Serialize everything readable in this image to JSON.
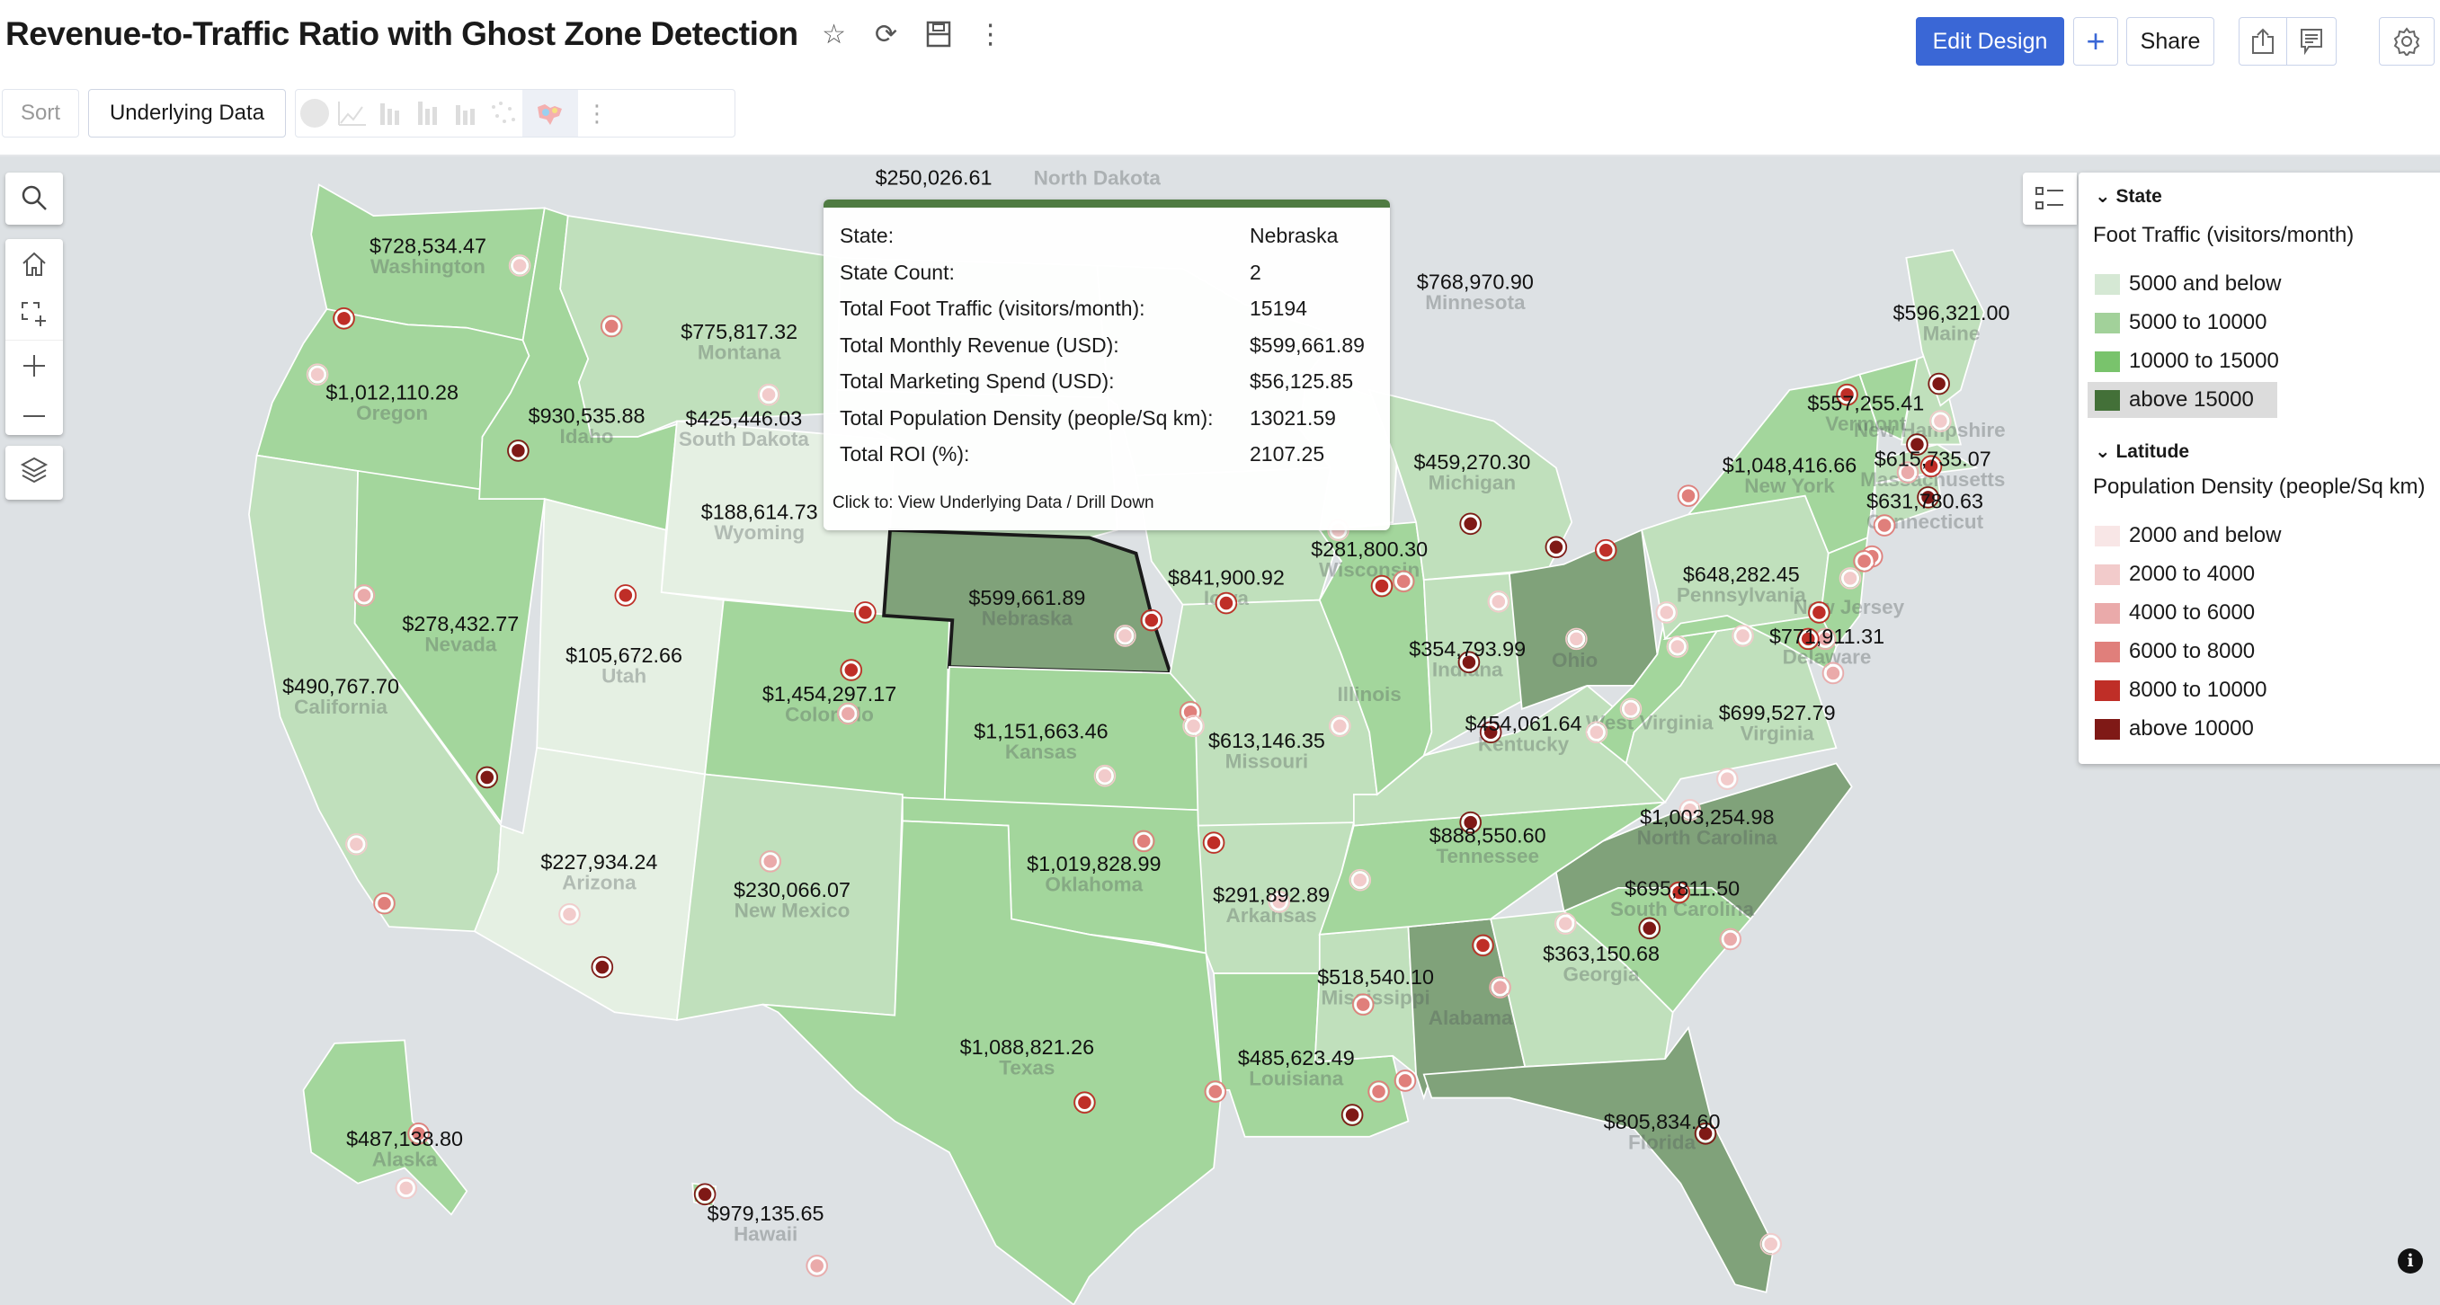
{
  "header": {
    "title": "Revenue-to-Traffic Ratio with Ghost Zone Detection",
    "edit_design": "Edit Design",
    "add": "+",
    "share": "Share"
  },
  "toolbar": {
    "sort": "Sort",
    "underlying_data": "Underlying Data"
  },
  "tooltip": {
    "rows": [
      {
        "label": "State:",
        "value": "Nebraska"
      },
      {
        "label": "State Count:",
        "value": "2"
      },
      {
        "label": "Total Foot Traffic (visitors/month):",
        "value": "15194"
      },
      {
        "label": "Total Monthly Revenue (USD):",
        "value": "$599,661.89"
      },
      {
        "label": "Total Marketing Spend (USD):",
        "value": "$56,125.85"
      },
      {
        "label": "Total Population Density (people/Sq km):",
        "value": "13021.59"
      },
      {
        "label": "Total ROI (%):",
        "value": "2107.25"
      }
    ],
    "footer": "Click to: View Underlying Data / Drill Down"
  },
  "legend": {
    "state_section": "State",
    "state_title": "Foot Traffic (visitors/month)",
    "state_items": [
      {
        "label": "5000 and below",
        "color": "#d5e8d4"
      },
      {
        "label": "5000 to 10000",
        "color": "#a2d19a"
      },
      {
        "label": "10000 to 15000",
        "color": "#79c36c"
      },
      {
        "label": "above 15000",
        "color": "#437038"
      }
    ],
    "lat_section": "Latitude",
    "lat_title": "Population Density (people/Sq km)",
    "lat_items": [
      {
        "label": "2000 and below",
        "color": "#f8e6e6"
      },
      {
        "label": "2000 to 4000",
        "color": "#f2cbcb"
      },
      {
        "label": "4000 to 6000",
        "color": "#eaaaaa"
      },
      {
        "label": "6000 to 8000",
        "color": "#e07f7b"
      },
      {
        "label": "8000 to 10000",
        "color": "#bf2e27"
      },
      {
        "label": "above 10000",
        "color": "#7f1916"
      }
    ]
  },
  "map_fill_colors": [
    "#e5f0e3",
    "#c0e0bc",
    "#a3d69c",
    "#80a27a"
  ],
  "states": [
    {
      "name": "Washington",
      "revenue": "$728,534.47",
      "traffic_band": 2
    },
    {
      "name": "Oregon",
      "revenue": "$1,012,110.28",
      "traffic_band": 2
    },
    {
      "name": "California",
      "revenue": "$490,767.70",
      "traffic_band": 1
    },
    {
      "name": "Nevada",
      "revenue": "$278,432.77",
      "traffic_band": 2
    },
    {
      "name": "Idaho",
      "revenue": "$930,535.88",
      "traffic_band": 2
    },
    {
      "name": "Montana",
      "revenue": "$775,817.32",
      "traffic_band": 1
    },
    {
      "name": "Wyoming",
      "revenue": "$188,614.73",
      "traffic_band": 0
    },
    {
      "name": "Utah",
      "revenue": "$105,672.66",
      "traffic_band": 0
    },
    {
      "name": "Arizona",
      "revenue": "$227,934.24",
      "traffic_band": 0
    },
    {
      "name": "Colorado",
      "revenue": "$1,454,297.17",
      "traffic_band": 2
    },
    {
      "name": "New Mexico",
      "revenue": "$230,066.07",
      "traffic_band": 1
    },
    {
      "name": "North Dakota",
      "revenue": "$250,026.61",
      "traffic_band": 1
    },
    {
      "name": "South Dakota",
      "revenue": "$425,446.03",
      "traffic_band": 1
    },
    {
      "name": "Nebraska",
      "revenue": "$599,661.89",
      "traffic_band": 3
    },
    {
      "name": "Kansas",
      "revenue": "$1,151,663.46",
      "traffic_band": 2
    },
    {
      "name": "Oklahoma",
      "revenue": "$1,019,828.99",
      "traffic_band": 2
    },
    {
      "name": "Texas",
      "revenue": "$1,088,821.26",
      "traffic_band": 2
    },
    {
      "name": "Minnesota",
      "revenue": "$768,970.90",
      "traffic_band": 1
    },
    {
      "name": "Iowa",
      "revenue": "$841,900.92",
      "traffic_band": 1
    },
    {
      "name": "Missouri",
      "revenue": "$613,146.35",
      "traffic_band": 1
    },
    {
      "name": "Arkansas",
      "revenue": "$291,892.89",
      "traffic_band": 1
    },
    {
      "name": "Louisiana",
      "revenue": "$485,623.49",
      "traffic_band": 2
    },
    {
      "name": "Mississippi",
      "revenue": "$518,540.10",
      "traffic_band": 1
    },
    {
      "name": "Alabama",
      "revenue": "",
      "traffic_band": 3
    },
    {
      "name": "Georgia",
      "revenue": "$363,150.68",
      "traffic_band": 1
    },
    {
      "name": "Florida",
      "revenue": "$805,834.60",
      "traffic_band": 3
    },
    {
      "name": "South Carolina",
      "revenue": "$695,811.50",
      "traffic_band": 2
    },
    {
      "name": "North Carolina",
      "revenue": "$1,003,254.98",
      "traffic_band": 3
    },
    {
      "name": "Tennessee",
      "revenue": "$888,550.60",
      "traffic_band": 2
    },
    {
      "name": "Kentucky",
      "revenue": "$454,061.64",
      "traffic_band": 1
    },
    {
      "name": "Illinois",
      "revenue": "",
      "traffic_band": 2
    },
    {
      "name": "Wisconsin",
      "revenue": "$281,800.30",
      "traffic_band": 0
    },
    {
      "name": "Michigan",
      "revenue": "$459,270.30",
      "traffic_band": 1
    },
    {
      "name": "Indiana",
      "revenue": "$354,793.99",
      "traffic_band": 1
    },
    {
      "name": "Ohio",
      "revenue": "",
      "traffic_band": 3
    },
    {
      "name": "West Virginia",
      "revenue": "",
      "traffic_band": 2
    },
    {
      "name": "Virginia",
      "revenue": "$699,527.79",
      "traffic_band": 1
    },
    {
      "name": "Pennsylvania",
      "revenue": "$648,282.45",
      "traffic_band": 1
    },
    {
      "name": "New York",
      "revenue": "$1,048,416.66",
      "traffic_band": 2
    },
    {
      "name": "New Jersey",
      "revenue": "",
      "traffic_band": 2
    },
    {
      "name": "Delaware",
      "revenue": "$771,911.31",
      "traffic_band": 2
    },
    {
      "name": "Vermont",
      "revenue": "$557,255.41",
      "traffic_band": 2
    },
    {
      "name": "New Hampshire",
      "revenue": "",
      "traffic_band": 1
    },
    {
      "name": "Maine",
      "revenue": "$596,321.00",
      "traffic_band": 1
    },
    {
      "name": "Massachusetts",
      "revenue": "$615,735.07",
      "traffic_band": 1
    },
    {
      "name": "Connecticut",
      "revenue": "$631,780.63",
      "traffic_band": 1
    },
    {
      "name": "Alaska",
      "revenue": "$487,138.80",
      "traffic_band": 2
    },
    {
      "name": "Hawaii",
      "revenue": "$979,135.65",
      "traffic_band": 2
    }
  ],
  "selected_state": "Nebraska",
  "density_markers": [
    4,
    1,
    1,
    3,
    5,
    1,
    4,
    2,
    5,
    1,
    3,
    1,
    5,
    2,
    4,
    2,
    4,
    1,
    4,
    1,
    3,
    4,
    3,
    1,
    1,
    4,
    4,
    3,
    1,
    5,
    5,
    1,
    5,
    5,
    1,
    4,
    1,
    1,
    1,
    3,
    4,
    5,
    1,
    5,
    4,
    2,
    5,
    3,
    3,
    3,
    4,
    2,
    4,
    1,
    1,
    1,
    2,
    1,
    1,
    5,
    4,
    1,
    2,
    5,
    4,
    2,
    1,
    3,
    5,
    3,
    3,
    3,
    4,
    1,
    5,
    1,
    3,
    1,
    5,
    2
  ]
}
